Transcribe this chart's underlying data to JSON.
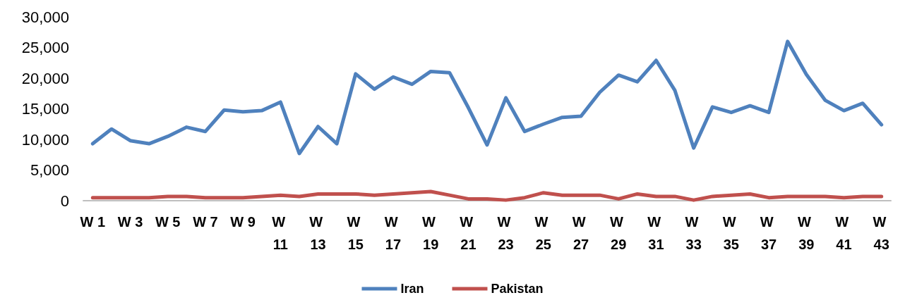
{
  "chart_data": {
    "type": "line",
    "categories": [
      "W 1",
      null,
      "W 3",
      null,
      "W 5",
      null,
      "W 7",
      null,
      "W 9",
      null,
      "W 11",
      null,
      "W 13",
      null,
      "W 15",
      null,
      "W 17",
      null,
      "W 19",
      null,
      "W 21",
      null,
      "W 23",
      null,
      "W 25",
      null,
      "W 27",
      null,
      "W 29",
      null,
      "W 31",
      null,
      "W 33",
      null,
      "W 35",
      null,
      "W 37",
      null,
      "W 39",
      null,
      "W 41",
      null,
      "W 43"
    ],
    "series": [
      {
        "name": "Iran",
        "color": "#4f81bd",
        "values": [
          9300,
          11700,
          9800,
          9300,
          10500,
          12000,
          11300,
          14800,
          14500,
          14700,
          16100,
          7700,
          12100,
          9300,
          20700,
          18200,
          20200,
          19000,
          21100,
          20900,
          15200,
          9100,
          16800,
          11300,
          12500,
          13600,
          13800,
          17700,
          20500,
          19400,
          22900,
          18000,
          8600,
          15300,
          14400,
          15500,
          14400,
          26000,
          20600,
          16400,
          14700,
          15900,
          12400
        ]
      },
      {
        "name": "Pakistan",
        "color": "#c0504d",
        "values": [
          500,
          500,
          500,
          500,
          700,
          700,
          500,
          500,
          500,
          700,
          900,
          700,
          1100,
          1100,
          1100,
          900,
          1100,
          1300,
          1500,
          900,
          300,
          300,
          100,
          500,
          1300,
          900,
          900,
          900,
          300,
          1100,
          700,
          700,
          100,
          700,
          900,
          1100,
          500,
          700,
          700,
          700,
          500,
          700,
          700
        ]
      }
    ],
    "ylim": [
      0,
      30000
    ],
    "yticks": [
      0,
      {
        "value": 5000,
        "label": "5,000"
      },
      {
        "value": 10000,
        "label": "10,000"
      },
      {
        "value": 15000,
        "label": "15,000"
      },
      {
        "value": 20000,
        "label": "20,000"
      },
      {
        "value": 25000,
        "label": "25,000"
      },
      {
        "value": 30000,
        "label": "30,000"
      }
    ],
    "grid": false,
    "legend": "bottom",
    "marker": "none",
    "line_style": "solid"
  }
}
